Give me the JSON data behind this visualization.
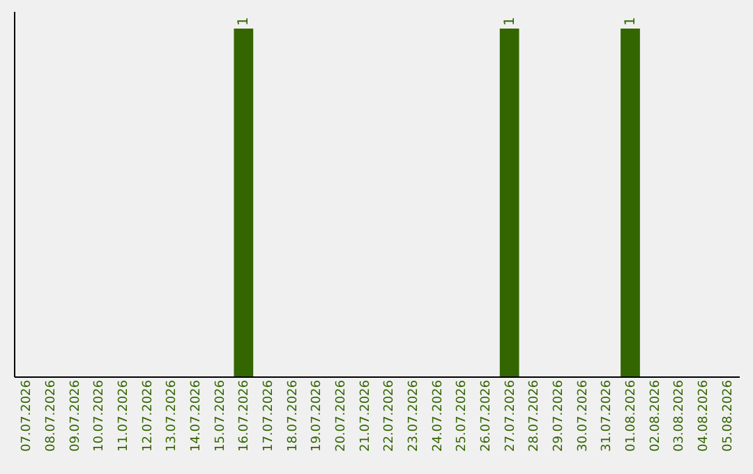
{
  "chart_data": {
    "type": "bar",
    "categories": [
      "07.07.2026",
      "08.07.2026",
      "09.07.2026",
      "10.07.2026",
      "11.07.2026",
      "12.07.2026",
      "13.07.2026",
      "14.07.2026",
      "15.07.2026",
      "16.07.2026",
      "17.07.2026",
      "18.07.2026",
      "19.07.2026",
      "20.07.2026",
      "21.07.2026",
      "22.07.2026",
      "23.07.2026",
      "24.07.2026",
      "25.07.2026",
      "26.07.2026",
      "27.07.2026",
      "28.07.2026",
      "29.07.2026",
      "30.07.2026",
      "31.07.2026",
      "01.08.2026",
      "02.08.2026",
      "03.08.2026",
      "04.08.2026",
      "05.08.2026"
    ],
    "values": [
      0,
      0,
      0,
      0,
      0,
      0,
      0,
      0,
      0,
      1,
      0,
      0,
      0,
      0,
      0,
      0,
      0,
      0,
      0,
      0,
      1,
      0,
      0,
      0,
      0,
      1,
      0,
      0,
      0,
      0
    ],
    "value_labels": [
      null,
      null,
      null,
      null,
      null,
      null,
      null,
      null,
      null,
      "1",
      null,
      null,
      null,
      null,
      null,
      null,
      null,
      null,
      null,
      null,
      "1",
      null,
      null,
      null,
      null,
      "1",
      null,
      null,
      null,
      null
    ],
    "color": "#336600",
    "ylim": [
      0,
      1.05
    ],
    "grid": false
  }
}
